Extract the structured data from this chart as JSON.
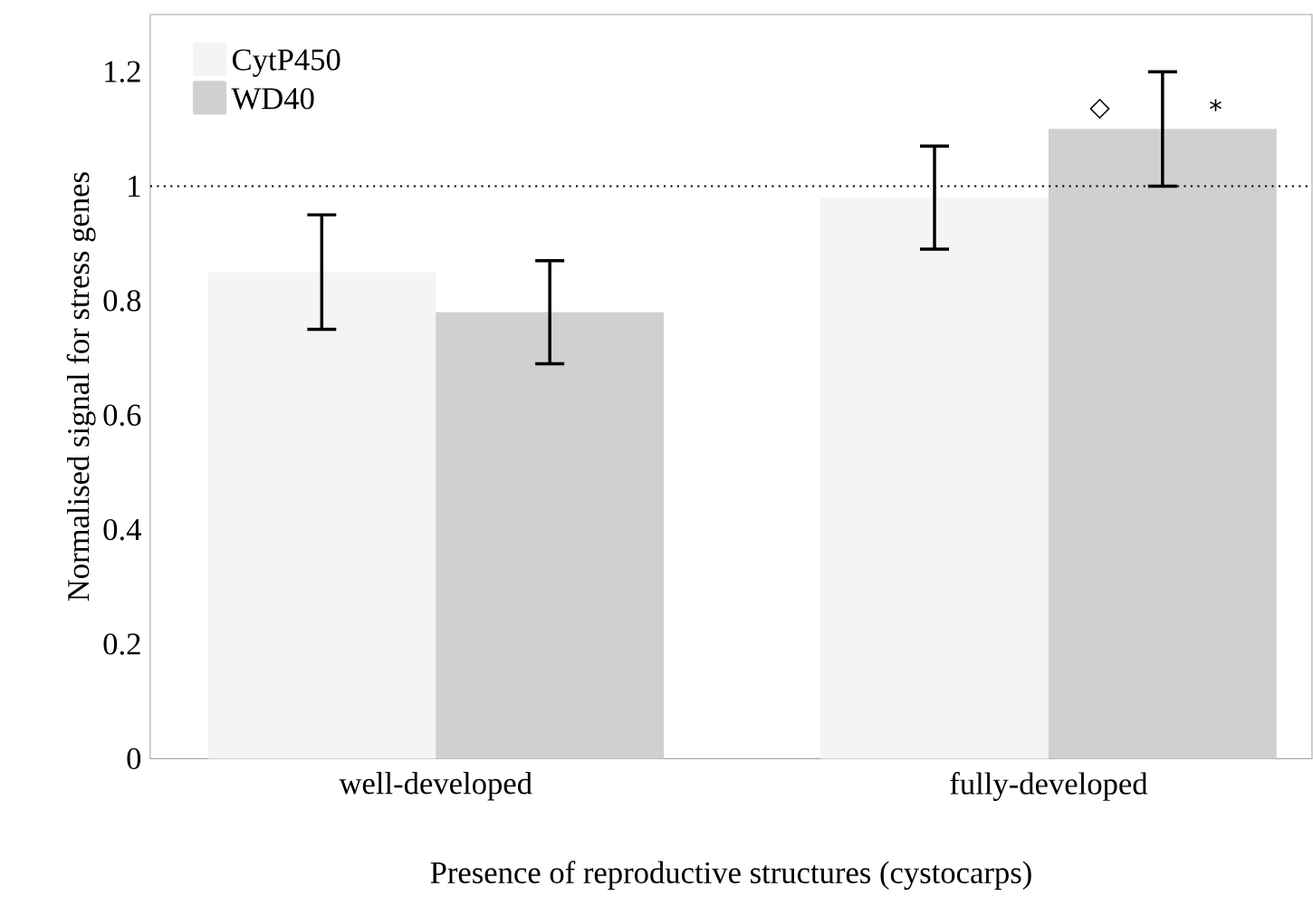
{
  "chart_data": {
    "type": "bar",
    "xlabel": "Presence of reproductive structures (cystocarps)",
    "ylabel": "Normalised signal for stress genes",
    "categories": [
      "well-developed",
      "fully-developed"
    ],
    "series": [
      {
        "name": "CytP450",
        "color": "#f4f4f4",
        "values": [
          0.85,
          0.98
        ],
        "errors": [
          [
            0.75,
            0.95
          ],
          [
            0.89,
            1.07
          ]
        ]
      },
      {
        "name": "WD40",
        "color": "#d0d0d0",
        "values": [
          0.78,
          1.1
        ],
        "errors": [
          [
            0.69,
            0.87
          ],
          [
            1.0,
            1.2
          ]
        ]
      }
    ],
    "ylim": [
      0,
      1.3
    ],
    "yticks": [
      0,
      0.2,
      0.4,
      0.6,
      0.8,
      1,
      1.2
    ],
    "ref_lines": [
      {
        "axis": "y",
        "value": 1,
        "line_style": "dotted"
      }
    ],
    "annotations": [
      "◇",
      "*"
    ],
    "legend": "top left"
  }
}
